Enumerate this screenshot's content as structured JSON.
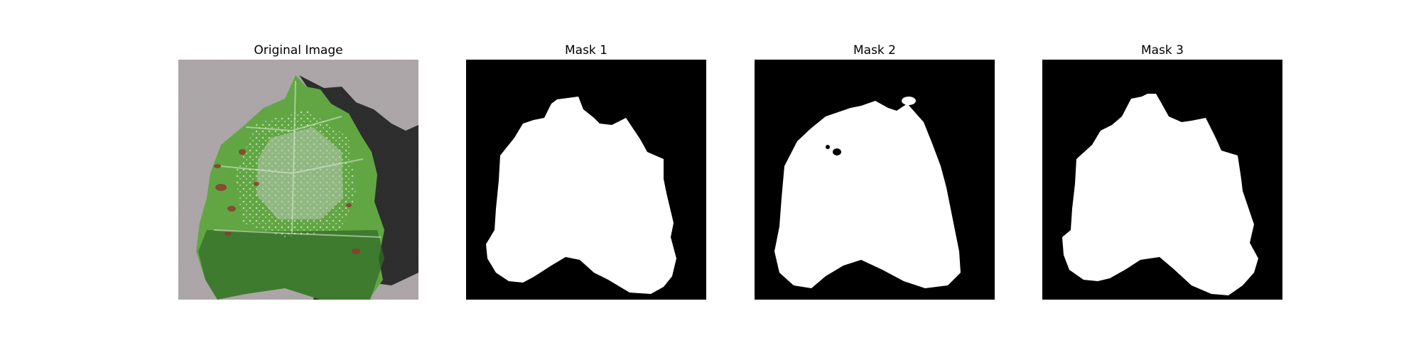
{
  "figure": {
    "panels": [
      {
        "title": "Original Image",
        "kind": "photo"
      },
      {
        "title": "Mask 1",
        "kind": "mask"
      },
      {
        "title": "Mask 2",
        "kind": "mask"
      },
      {
        "title": "Mask 3",
        "kind": "mask"
      }
    ],
    "colors": {
      "background": "#ffffff",
      "mask_background": "#000000",
      "mask_foreground": "#ffffff",
      "leaf_green": "#5fa640",
      "leaf_dark": "#2f6a24",
      "surface_gray": "#a9a3a6",
      "shadow": "#2a2a2a",
      "lesion_red": "#8a3a2c"
    }
  }
}
